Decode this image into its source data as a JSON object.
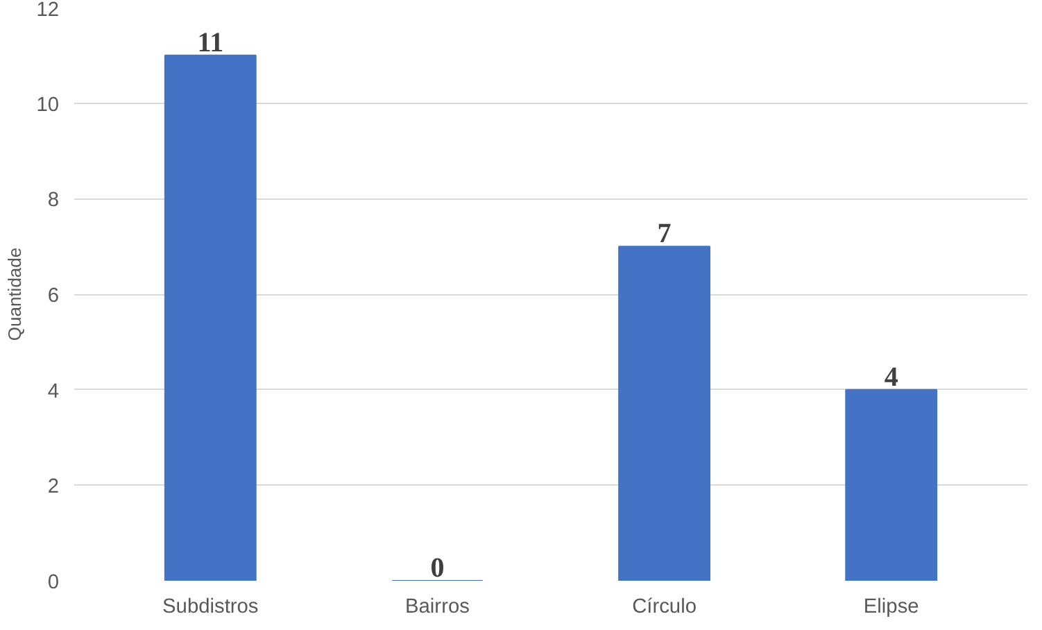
{
  "chart_data": {
    "type": "bar",
    "ylabel": "Quantidade",
    "categories": [
      "Subdistros",
      "Bairros",
      "Círculo",
      "Elipse"
    ],
    "values": [
      11,
      0,
      7,
      4
    ],
    "color": "#4472c4",
    "ylim": [
      0,
      12
    ],
    "yticks": [
      0,
      2,
      4,
      6,
      8,
      10,
      12
    ],
    "grid": "y",
    "data_labels": true
  }
}
